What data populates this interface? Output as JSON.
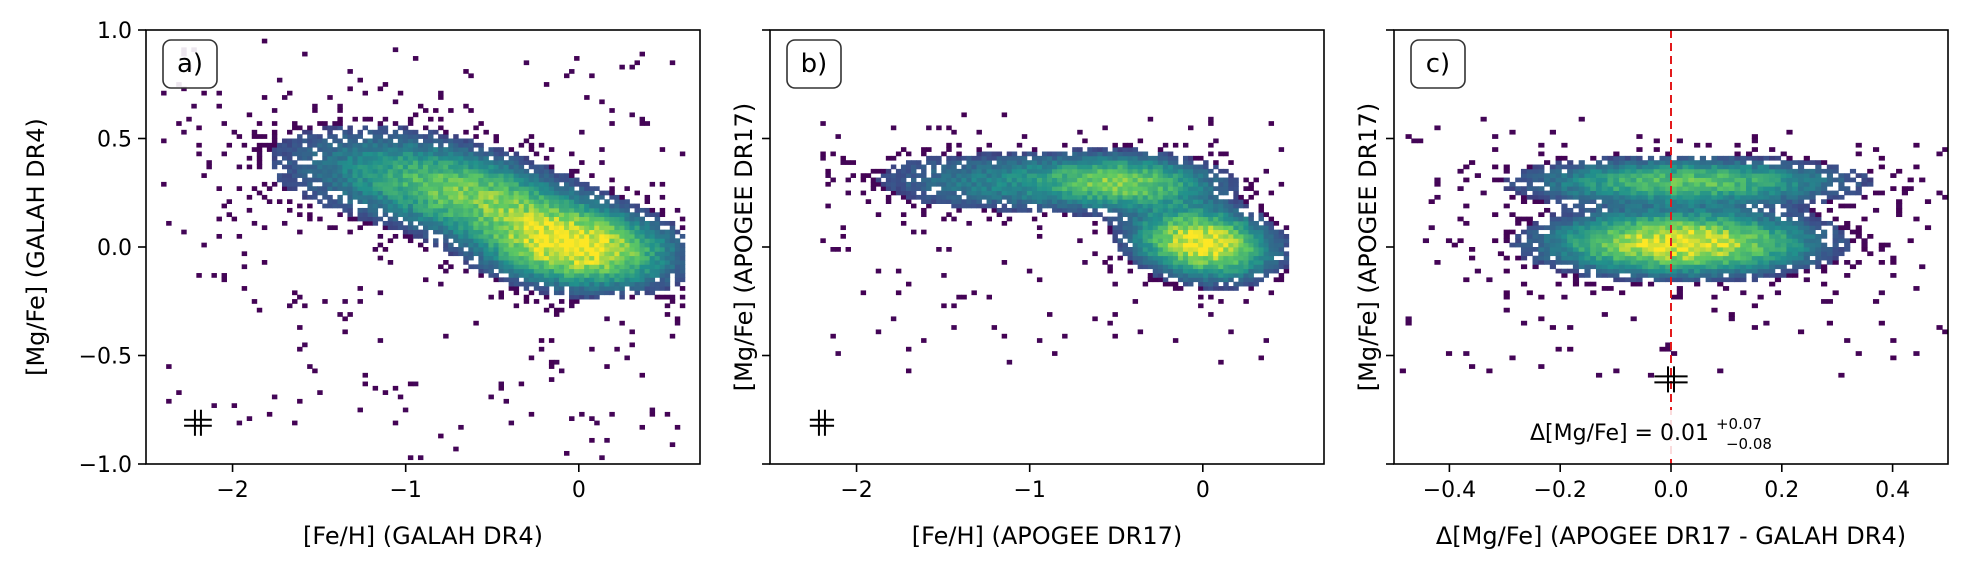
{
  "figure": {
    "colors": {
      "colormap": [
        "#440154",
        "#3b528b",
        "#21918c",
        "#5ec962",
        "#fde725"
      ],
      "ref_line": "#e31a1c",
      "axis": "#000000"
    },
    "panels": [
      {
        "label": "a)",
        "xlabel": "[Fe/H] (GALAH DR4)",
        "ylabel": "[Mg/Fe] (GALAH DR4)",
        "xlim": [
          -2.5,
          0.7
        ],
        "ylim": [
          -1.0,
          1.0
        ],
        "xticks": [
          {
            "v": -2,
            "t": "−2"
          },
          {
            "v": -1,
            "t": "−1"
          },
          {
            "v": 0,
            "t": "0"
          }
        ],
        "yticks": [
          {
            "v": -1.0,
            "t": "−1.0"
          },
          {
            "v": -0.5,
            "t": "−0.5"
          },
          {
            "v": 0.0,
            "t": "0.0"
          },
          {
            "v": 0.5,
            "t": "0.5"
          },
          {
            "v": 1.0,
            "t": "1.0"
          }
        ],
        "errorbar": {
          "x": -2.2,
          "y": -0.81,
          "xerr": 0.08,
          "yerr": 0.06
        }
      },
      {
        "label": "b)",
        "xlabel": "[Fe/H] (APOGEE DR17)",
        "ylabel": "[Mg/Fe] (APOGEE DR17)",
        "xlim": [
          -2.5,
          0.7
        ],
        "ylim": [
          -1.0,
          1.0
        ],
        "xticks": [
          {
            "v": -2,
            "t": "−2"
          },
          {
            "v": -1,
            "t": "−1"
          },
          {
            "v": 0,
            "t": "0"
          }
        ],
        "yticks": [
          {
            "v": -1.0,
            "t": ""
          },
          {
            "v": -0.5,
            "t": ""
          },
          {
            "v": 0.0,
            "t": ""
          },
          {
            "v": 0.5,
            "t": ""
          },
          {
            "v": 1.0,
            "t": ""
          }
        ],
        "errorbar": {
          "x": -2.2,
          "y": -0.81,
          "xerr": 0.07,
          "yerr": 0.06
        }
      },
      {
        "label": "c)",
        "xlabel": "Δ[Mg/Fe] (APOGEE DR17 - GALAH DR4)",
        "ylabel": "[Mg/Fe] (APOGEE DR17)",
        "xlim": [
          -0.5,
          0.5
        ],
        "ylim": [
          -1.0,
          1.0
        ],
        "xticks": [
          {
            "v": -0.4,
            "t": "−0.4"
          },
          {
            "v": -0.2,
            "t": "−0.2"
          },
          {
            "v": 0.0,
            "t": "0.0"
          },
          {
            "v": 0.2,
            "t": "0.2"
          },
          {
            "v": 0.4,
            "t": "0.4"
          }
        ],
        "yticks": [
          {
            "v": -1.0,
            "t": ""
          },
          {
            "v": -0.5,
            "t": ""
          },
          {
            "v": 0.0,
            "t": ""
          },
          {
            "v": 0.5,
            "t": ""
          },
          {
            "v": 1.0,
            "t": ""
          }
        ],
        "ref_line_x": 0.0,
        "errorbar": {
          "x": 0.0,
          "y": -0.61,
          "xerr": 0.03,
          "yerr": 0.06
        },
        "annotation": {
          "prefix": "Δ[Mg/Fe] = 0.01",
          "sup": "+0.07",
          "sub": "−0.08"
        }
      }
    ]
  },
  "chart_data": [
    {
      "type": "heatmap",
      "label": "a)",
      "xlabel": "[Fe/H] (GALAH DR4)",
      "ylabel": "[Mg/Fe] (GALAH DR4)",
      "xlim": [
        -2.5,
        0.7
      ],
      "ylim": [
        -1.0,
        1.0
      ],
      "density_peaks": [
        {
          "x": 0.0,
          "y": 0.0,
          "weight": 1.0
        },
        {
          "x": -0.5,
          "y": 0.25,
          "weight": 0.6
        },
        {
          "x": -1.0,
          "y": 0.35,
          "weight": 0.2
        }
      ],
      "x_range": [
        -2.4,
        0.6
      ],
      "y_range": [
        -0.97,
        0.97
      ]
    },
    {
      "type": "heatmap",
      "label": "b)",
      "xlabel": "[Fe/H] (APOGEE DR17)",
      "ylabel": "[Mg/Fe] (APOGEE DR17)",
      "xlim": [
        -2.5,
        0.7
      ],
      "ylim": [
        -1.0,
        1.0
      ],
      "density_peaks": [
        {
          "x": 0.0,
          "y": 0.02,
          "weight": 1.0
        },
        {
          "x": -0.4,
          "y": 0.3,
          "weight": 0.55
        },
        {
          "x": -1.1,
          "y": 0.3,
          "weight": 0.2
        }
      ],
      "x_range": [
        -2.2,
        0.5
      ],
      "y_range": [
        -0.6,
        0.62
      ]
    },
    {
      "type": "heatmap",
      "label": "c)",
      "xlabel": "Δ[Mg/Fe] (APOGEE DR17 - GALAH DR4)",
      "ylabel": "[Mg/Fe] (APOGEE DR17)",
      "xlim": [
        -0.5,
        0.5
      ],
      "ylim": [
        -1.0,
        1.0
      ],
      "density_peaks": [
        {
          "x": 0.0,
          "y": 0.02,
          "weight": 1.0
        },
        {
          "x": 0.0,
          "y": 0.3,
          "weight": 0.55
        }
      ],
      "x_range": [
        -0.5,
        0.5
      ],
      "y_range": [
        -0.6,
        0.6
      ],
      "vertical_line_x": 0.0
    }
  ]
}
